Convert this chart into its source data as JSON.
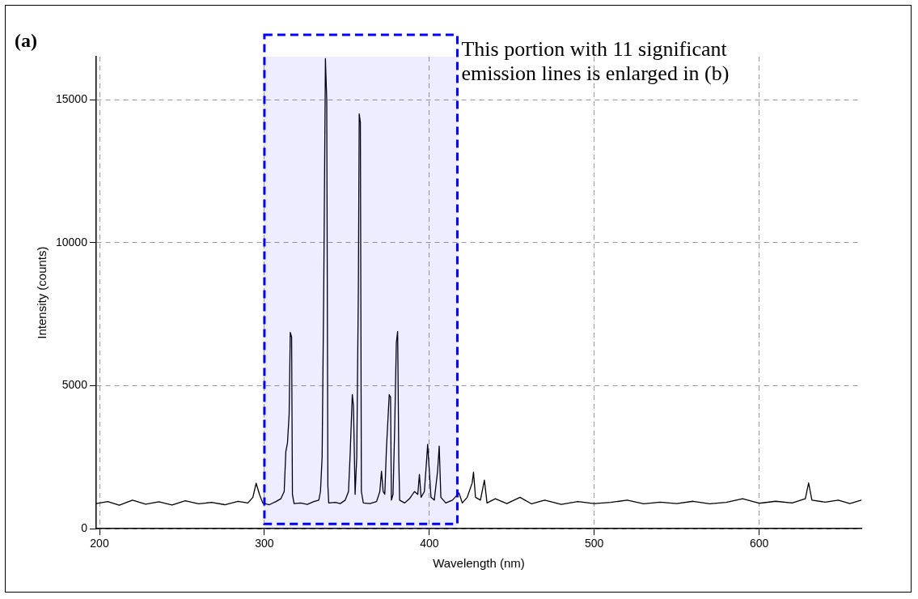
{
  "chart_data": {
    "type": "line",
    "title": "(a)",
    "xlabel": "Wavelength (nm)",
    "ylabel": "Intensity (counts)",
    "xlim": [
      198,
      662
    ],
    "xticks": [
      200,
      300,
      400,
      500,
      600
    ],
    "ylim": [
      0,
      16500
    ],
    "yticks": [
      0,
      5000,
      10000,
      15000
    ],
    "grid": true,
    "marker": "none",
    "line_style": "solid",
    "bands": [
      {
        "axis": "x",
        "from": 300,
        "to": 417,
        "label": "This portion with 11 significant emission lines is enlarged in (b)",
        "color": "#0000ff"
      }
    ],
    "series": [
      {
        "color": "#000000",
        "x": [
          198,
          205,
          212,
          220,
          228,
          236,
          244,
          252,
          260,
          268,
          276,
          284,
          290,
          293,
          295,
          297,
          299,
          303,
          307,
          310,
          312,
          313,
          314,
          315,
          315.7,
          316.5,
          317,
          318,
          322,
          326,
          330,
          333,
          334,
          335,
          336,
          337,
          337.8,
          338.5,
          339,
          343,
          346,
          349,
          351,
          352,
          353.3,
          354,
          355,
          356,
          357,
          357.5,
          358.2,
          358.8,
          360,
          364,
          368,
          370,
          371,
          372,
          373,
          374,
          375.7,
          376.5,
          377,
          378,
          379,
          380,
          380.8,
          381.5,
          382,
          385,
          388,
          391,
          393,
          394,
          395,
          397,
          398,
          399,
          401,
          403,
          405,
          406,
          407,
          410,
          414,
          418,
          420,
          423,
          426,
          426.8,
          428,
          431,
          433.4,
          435,
          440,
          447,
          455,
          462,
          470,
          480,
          490,
          500,
          510,
          520,
          530,
          540,
          550,
          560,
          570,
          580,
          590,
          600,
          610,
          620,
          628,
          630,
          632,
          640,
          648,
          655,
          662
        ],
        "values": [
          880,
          950,
          820,
          1000,
          860,
          940,
          830,
          980,
          870,
          920,
          840,
          960,
          900,
          1100,
          1590,
          1200,
          900,
          840,
          950,
          1050,
          1300,
          2700,
          3000,
          4000,
          6860,
          6700,
          1200,
          880,
          900,
          850,
          950,
          1000,
          1300,
          2500,
          8500,
          16430,
          15000,
          1500,
          900,
          920,
          880,
          1000,
          1300,
          2600,
          4690,
          4300,
          1200,
          2500,
          8500,
          14500,
          14200,
          1300,
          900,
          880,
          950,
          1300,
          2010,
          1300,
          1200,
          2800,
          4690,
          4600,
          1000,
          1200,
          3500,
          6500,
          6900,
          2400,
          1000,
          900,
          1050,
          1300,
          1200,
          1900,
          1100,
          1300,
          2100,
          2950,
          1100,
          1000,
          2000,
          2890,
          1100,
          900,
          1000,
          1250,
          900,
          1100,
          1600,
          1980,
          1100,
          1000,
          1700,
          900,
          1050,
          880,
          1100,
          870,
          1000,
          850,
          950,
          880,
          920,
          1000,
          870,
          930,
          880,
          960,
          870,
          920,
          1050,
          890,
          960,
          900,
          1050,
          1600,
          1000,
          930,
          1000,
          880,
          1000
        ]
      }
    ]
  }
}
